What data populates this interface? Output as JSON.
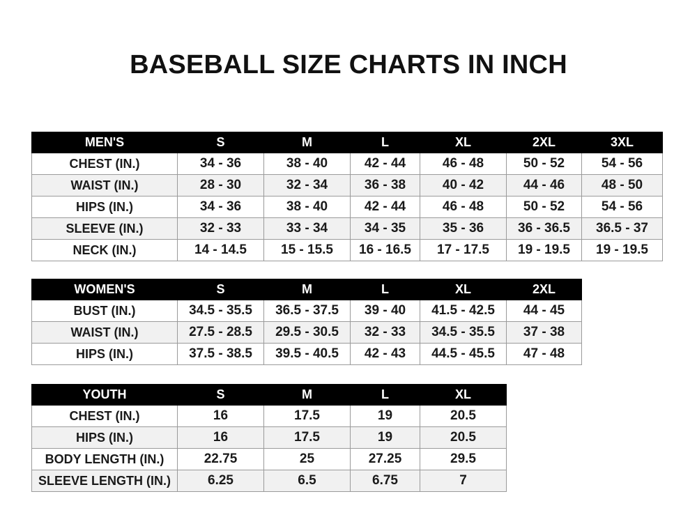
{
  "title": "BASEBALL SIZE CHARTS IN INCH",
  "tables": [
    {
      "id": "men",
      "headers": [
        "MEN'S",
        "S",
        "M",
        "L",
        "XL",
        "2XL",
        "3XL"
      ],
      "rows": [
        [
          "CHEST (IN.)",
          "34 - 36",
          "38 - 40",
          "42 - 44",
          "46 - 48",
          "50 - 52",
          "54 - 56"
        ],
        [
          "WAIST (IN.)",
          "28 - 30",
          "32 - 34",
          "36 - 38",
          "40 - 42",
          "44 - 46",
          "48 - 50"
        ],
        [
          "HIPS (IN.)",
          "34 - 36",
          "38 - 40",
          "42 - 44",
          "46 - 48",
          "50 - 52",
          "54 - 56"
        ],
        [
          "SLEEVE (IN.)",
          "32 - 33",
          "33 - 34",
          "34 - 35",
          "35 - 36",
          "36 - 36.5",
          "36.5 - 37"
        ],
        [
          "NECK (IN.)",
          "14 - 14.5",
          "15 - 15.5",
          "16 - 16.5",
          "17 - 17.5",
          "19 - 19.5",
          "19 - 19.5"
        ]
      ]
    },
    {
      "id": "women",
      "headers": [
        "WOMEN'S",
        "S",
        "M",
        "L",
        "XL",
        "2XL"
      ],
      "rows": [
        [
          "BUST (IN.)",
          "34.5 - 35.5",
          "36.5 - 37.5",
          "39 - 40",
          "41.5 - 42.5",
          "44 - 45"
        ],
        [
          "WAIST (IN.)",
          "27.5 - 28.5",
          "29.5 - 30.5",
          "32 - 33",
          "34.5 - 35.5",
          "37 - 38"
        ],
        [
          "HIPS (IN.)",
          "37.5 - 38.5",
          "39.5 - 40.5",
          "42 - 43",
          "44.5 - 45.5",
          "47 - 48"
        ]
      ]
    },
    {
      "id": "youth",
      "headers": [
        "YOUTH",
        "S",
        "M",
        "L",
        "XL"
      ],
      "rows": [
        [
          "CHEST (IN.)",
          "16",
          "17.5",
          "19",
          "20.5"
        ],
        [
          "HIPS (IN.)",
          "16",
          "17.5",
          "19",
          "20.5"
        ],
        [
          "BODY LENGTH (IN.)",
          "22.75",
          "25",
          "27.25",
          "29.5"
        ],
        [
          "SLEEVE LENGTH (IN.)",
          "6.25",
          "6.5",
          "6.75",
          "7"
        ]
      ]
    }
  ]
}
